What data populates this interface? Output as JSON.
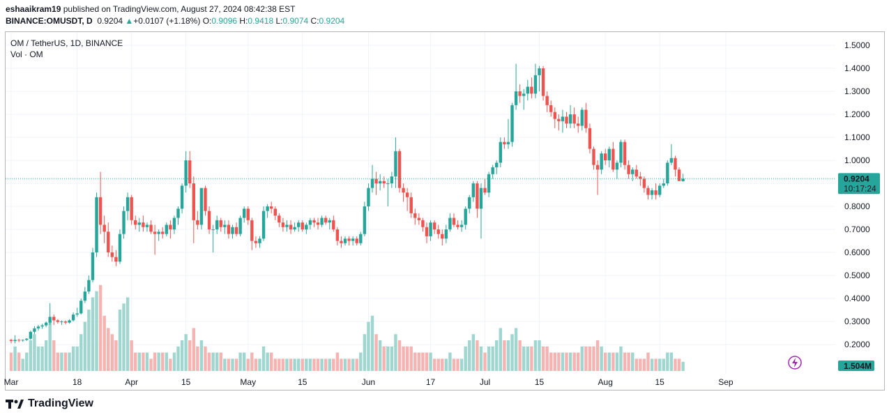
{
  "header": {
    "publisher": "eshaaikram19",
    "published_text": "published on TradingView.com, August 27, 2024 08:42:38 EST",
    "symbol": "BINANCE:OMUSDT, D",
    "price": "0.9204",
    "change_arrow": "▲",
    "change": "+0.0107 (+1.18%)",
    "o_label": "O:",
    "o_value": "0.9096",
    "h_label": "H:",
    "h_value": "0.9418",
    "l_label": "L:",
    "l_value": "0.9074",
    "c_label": "C:",
    "c_value": "0.9204"
  },
  "legend": {
    "title": "OM / TetherUS, 1D, BINANCE",
    "volume": "Vol · OM"
  },
  "footer": {
    "brand": "TradingView"
  },
  "colors": {
    "up": "#26a69a",
    "down": "#ef5350",
    "up_vol": "#9fd6cf",
    "down_vol": "#f5b3b1",
    "grid": "#f0f3fa"
  },
  "chart_data": {
    "type": "candlestick",
    "title": "OM / TetherUS, 1D, BINANCE",
    "ylim": [
      0.1,
      1.55
    ],
    "y_ticks": [
      "1.5000",
      "1.4000",
      "1.3000",
      "1.2000",
      "1.1000",
      "1.0000",
      "0.9000",
      "0.8000",
      "0.7000",
      "0.6000",
      "0.5000",
      "0.4000",
      "0.3000",
      "0.2000"
    ],
    "x_ticks": [
      {
        "label": "Mar",
        "day": 0
      },
      {
        "label": "18",
        "day": 17
      },
      {
        "label": "Apr",
        "day": 31
      },
      {
        "label": "15",
        "day": 45
      },
      {
        "label": "May",
        "day": 61
      },
      {
        "label": "15",
        "day": 75
      },
      {
        "label": "Jun",
        "day": 92
      },
      {
        "label": "17",
        "day": 108
      },
      {
        "label": "Jul",
        "day": 122
      },
      {
        "label": "15",
        "day": 136
      },
      {
        "label": "Aug",
        "day": 153
      },
      {
        "label": "15",
        "day": 167
      },
      {
        "label": "Sep",
        "day": 184
      }
    ],
    "last_price": "0.9204",
    "countdown": "10:17:24",
    "volume_label": "1.504M",
    "candles": [
      [
        0.22,
        0.225,
        0.205,
        0.215,
        3
      ],
      [
        0.215,
        0.24,
        0.205,
        0.22,
        4
      ],
      [
        0.22,
        0.225,
        0.21,
        0.218,
        3
      ],
      [
        0.218,
        0.222,
        0.212,
        0.22,
        2
      ],
      [
        0.22,
        0.228,
        0.215,
        0.225,
        3
      ],
      [
        0.225,
        0.26,
        0.22,
        0.255,
        5
      ],
      [
        0.255,
        0.28,
        0.245,
        0.27,
        6
      ],
      [
        0.27,
        0.285,
        0.26,
        0.278,
        4
      ],
      [
        0.278,
        0.29,
        0.268,
        0.283,
        4
      ],
      [
        0.283,
        0.3,
        0.275,
        0.295,
        5
      ],
      [
        0.295,
        0.38,
        0.285,
        0.32,
        8
      ],
      [
        0.32,
        0.33,
        0.285,
        0.305,
        5
      ],
      [
        0.305,
        0.31,
        0.29,
        0.298,
        3
      ],
      [
        0.298,
        0.305,
        0.285,
        0.3,
        3
      ],
      [
        0.3,
        0.305,
        0.288,
        0.295,
        3
      ],
      [
        0.295,
        0.31,
        0.29,
        0.305,
        3
      ],
      [
        0.305,
        0.34,
        0.3,
        0.33,
        4
      ],
      [
        0.33,
        0.36,
        0.32,
        0.335,
        4
      ],
      [
        0.335,
        0.4,
        0.33,
        0.39,
        6
      ],
      [
        0.39,
        0.45,
        0.38,
        0.43,
        8
      ],
      [
        0.43,
        0.5,
        0.42,
        0.48,
        10
      ],
      [
        0.48,
        0.62,
        0.47,
        0.6,
        12
      ],
      [
        0.6,
        0.86,
        0.58,
        0.84,
        13
      ],
      [
        0.84,
        0.95,
        0.68,
        0.72,
        14
      ],
      [
        0.72,
        0.76,
        0.64,
        0.69,
        9
      ],
      [
        0.69,
        0.73,
        0.58,
        0.6,
        7
      ],
      [
        0.6,
        0.63,
        0.56,
        0.58,
        6
      ],
      [
        0.58,
        0.61,
        0.54,
        0.56,
        5
      ],
      [
        0.56,
        0.7,
        0.55,
        0.68,
        10
      ],
      [
        0.68,
        0.8,
        0.66,
        0.78,
        11
      ],
      [
        0.78,
        0.86,
        0.74,
        0.84,
        12
      ],
      [
        0.84,
        0.85,
        0.72,
        0.74,
        5
      ],
      [
        0.74,
        0.76,
        0.7,
        0.72,
        3
      ],
      [
        0.72,
        0.75,
        0.69,
        0.73,
        3
      ],
      [
        0.73,
        0.76,
        0.69,
        0.71,
        3
      ],
      [
        0.71,
        0.73,
        0.69,
        0.72,
        3
      ],
      [
        0.72,
        0.74,
        0.68,
        0.69,
        2
      ],
      [
        0.69,
        0.72,
        0.59,
        0.68,
        3
      ],
      [
        0.68,
        0.7,
        0.65,
        0.69,
        3
      ],
      [
        0.69,
        0.71,
        0.66,
        0.68,
        3
      ],
      [
        0.68,
        0.73,
        0.67,
        0.72,
        3
      ],
      [
        0.72,
        0.74,
        0.66,
        0.7,
        2
      ],
      [
        0.7,
        0.76,
        0.68,
        0.75,
        3
      ],
      [
        0.75,
        0.8,
        0.72,
        0.79,
        4
      ],
      [
        0.79,
        0.9,
        0.77,
        0.89,
        5
      ],
      [
        0.89,
        1.04,
        0.86,
        1.0,
        6
      ],
      [
        1.0,
        1.04,
        0.88,
        0.9,
        5
      ],
      [
        0.9,
        0.93,
        0.64,
        0.74,
        7
      ],
      [
        0.74,
        0.78,
        0.7,
        0.72,
        4
      ],
      [
        0.72,
        0.88,
        0.7,
        0.88,
        5
      ],
      [
        0.88,
        0.89,
        0.76,
        0.78,
        4
      ],
      [
        0.78,
        0.8,
        0.68,
        0.7,
        3
      ],
      [
        0.7,
        0.72,
        0.6,
        0.7,
        3
      ],
      [
        0.7,
        0.76,
        0.68,
        0.74,
        3
      ],
      [
        0.74,
        0.75,
        0.69,
        0.71,
        3
      ],
      [
        0.71,
        0.74,
        0.68,
        0.72,
        2
      ],
      [
        0.72,
        0.74,
        0.66,
        0.68,
        2
      ],
      [
        0.68,
        0.72,
        0.66,
        0.71,
        2
      ],
      [
        0.71,
        0.73,
        0.67,
        0.68,
        2
      ],
      [
        0.68,
        0.76,
        0.67,
        0.75,
        3
      ],
      [
        0.75,
        0.8,
        0.73,
        0.79,
        3
      ],
      [
        0.79,
        0.8,
        0.72,
        0.74,
        2
      ],
      [
        0.74,
        0.75,
        0.61,
        0.65,
        3
      ],
      [
        0.65,
        0.67,
        0.62,
        0.64,
        2
      ],
      [
        0.64,
        0.67,
        0.62,
        0.66,
        2
      ],
      [
        0.66,
        0.8,
        0.65,
        0.78,
        4
      ],
      [
        0.78,
        0.81,
        0.75,
        0.8,
        3
      ],
      [
        0.8,
        0.82,
        0.77,
        0.79,
        3
      ],
      [
        0.79,
        0.8,
        0.74,
        0.76,
        2
      ],
      [
        0.76,
        0.77,
        0.71,
        0.73,
        2
      ],
      [
        0.73,
        0.75,
        0.69,
        0.71,
        2
      ],
      [
        0.71,
        0.74,
        0.69,
        0.72,
        2
      ],
      [
        0.72,
        0.74,
        0.68,
        0.7,
        2
      ],
      [
        0.7,
        0.73,
        0.69,
        0.71,
        2
      ],
      [
        0.71,
        0.74,
        0.69,
        0.73,
        2
      ],
      [
        0.73,
        0.74,
        0.69,
        0.7,
        2
      ],
      [
        0.7,
        0.73,
        0.68,
        0.72,
        2
      ],
      [
        0.72,
        0.75,
        0.7,
        0.74,
        2
      ],
      [
        0.74,
        0.75,
        0.71,
        0.73,
        2
      ],
      [
        0.73,
        0.75,
        0.7,
        0.72,
        2
      ],
      [
        0.72,
        0.76,
        0.71,
        0.75,
        2
      ],
      [
        0.75,
        0.76,
        0.72,
        0.73,
        2
      ],
      [
        0.73,
        0.75,
        0.7,
        0.74,
        2
      ],
      [
        0.74,
        0.76,
        0.69,
        0.7,
        2
      ],
      [
        0.7,
        0.71,
        0.63,
        0.65,
        3
      ],
      [
        0.65,
        0.67,
        0.62,
        0.64,
        2
      ],
      [
        0.64,
        0.67,
        0.63,
        0.66,
        2
      ],
      [
        0.66,
        0.67,
        0.63,
        0.65,
        2
      ],
      [
        0.65,
        0.67,
        0.63,
        0.66,
        2
      ],
      [
        0.66,
        0.67,
        0.63,
        0.64,
        2
      ],
      [
        0.64,
        0.69,
        0.63,
        0.68,
        3
      ],
      [
        0.68,
        0.82,
        0.67,
        0.8,
        6
      ],
      [
        0.8,
        0.9,
        0.78,
        0.88,
        8
      ],
      [
        0.88,
        0.98,
        0.86,
        0.92,
        9
      ],
      [
        0.92,
        0.95,
        0.85,
        0.9,
        6
      ],
      [
        0.9,
        0.94,
        0.87,
        0.91,
        5
      ],
      [
        0.91,
        0.93,
        0.88,
        0.9,
        4
      ],
      [
        0.9,
        0.92,
        0.8,
        0.9,
        4
      ],
      [
        0.9,
        0.95,
        0.88,
        0.93,
        4
      ],
      [
        0.93,
        1.1,
        0.88,
        1.04,
        6
      ],
      [
        1.04,
        1.05,
        0.86,
        0.88,
        5
      ],
      [
        0.88,
        0.9,
        0.82,
        0.86,
        4
      ],
      [
        0.86,
        0.88,
        0.78,
        0.84,
        4
      ],
      [
        0.84,
        0.86,
        0.75,
        0.77,
        4
      ],
      [
        0.77,
        0.79,
        0.72,
        0.75,
        3
      ],
      [
        0.75,
        0.77,
        0.72,
        0.74,
        3
      ],
      [
        0.74,
        0.75,
        0.69,
        0.71,
        3
      ],
      [
        0.71,
        0.73,
        0.64,
        0.67,
        3
      ],
      [
        0.67,
        0.74,
        0.65,
        0.73,
        3
      ],
      [
        0.73,
        0.74,
        0.68,
        0.7,
        2
      ],
      [
        0.7,
        0.72,
        0.66,
        0.68,
        2
      ],
      [
        0.68,
        0.7,
        0.63,
        0.66,
        2
      ],
      [
        0.66,
        0.72,
        0.64,
        0.7,
        2
      ],
      [
        0.7,
        0.77,
        0.69,
        0.75,
        3
      ],
      [
        0.75,
        0.77,
        0.71,
        0.72,
        2
      ],
      [
        0.72,
        0.74,
        0.7,
        0.71,
        2
      ],
      [
        0.71,
        0.74,
        0.69,
        0.72,
        2
      ],
      [
        0.72,
        0.8,
        0.7,
        0.79,
        4
      ],
      [
        0.79,
        0.85,
        0.77,
        0.84,
        5
      ],
      [
        0.84,
        0.91,
        0.82,
        0.9,
        6
      ],
      [
        0.9,
        0.91,
        0.75,
        0.79,
        5
      ],
      [
        0.79,
        0.9,
        0.66,
        0.88,
        4
      ],
      [
        0.88,
        0.92,
        0.85,
        0.86,
        3
      ],
      [
        0.86,
        0.95,
        0.84,
        0.94,
        4
      ],
      [
        0.94,
        0.98,
        0.92,
        0.97,
        4
      ],
      [
        0.97,
        1.0,
        0.94,
        0.99,
        5
      ],
      [
        0.99,
        1.1,
        0.97,
        1.08,
        7
      ],
      [
        1.08,
        1.1,
        1.05,
        1.07,
        5
      ],
      [
        1.07,
        1.18,
        1.05,
        1.08,
        5
      ],
      [
        1.08,
        1.25,
        1.06,
        1.24,
        6
      ],
      [
        1.24,
        1.42,
        1.22,
        1.3,
        7
      ],
      [
        1.3,
        1.33,
        1.25,
        1.28,
        5
      ],
      [
        1.28,
        1.31,
        1.22,
        1.29,
        4
      ],
      [
        1.29,
        1.35,
        1.26,
        1.32,
        4
      ],
      [
        1.32,
        1.36,
        1.27,
        1.29,
        4
      ],
      [
        1.29,
        1.42,
        1.27,
        1.37,
        5
      ],
      [
        1.37,
        1.41,
        1.3,
        1.4,
        5
      ],
      [
        1.4,
        1.41,
        1.26,
        1.28,
        4
      ],
      [
        1.28,
        1.3,
        1.21,
        1.24,
        4
      ],
      [
        1.24,
        1.26,
        1.19,
        1.21,
        3
      ],
      [
        1.21,
        1.23,
        1.14,
        1.18,
        3
      ],
      [
        1.18,
        1.2,
        1.13,
        1.17,
        3
      ],
      [
        1.17,
        1.22,
        1.12,
        1.19,
        3
      ],
      [
        1.19,
        1.21,
        1.14,
        1.16,
        3
      ],
      [
        1.16,
        1.24,
        1.14,
        1.2,
        3
      ],
      [
        1.2,
        1.23,
        1.14,
        1.16,
        3
      ],
      [
        1.16,
        1.19,
        1.12,
        1.15,
        3
      ],
      [
        1.15,
        1.23,
        1.13,
        1.22,
        4
      ],
      [
        1.22,
        1.25,
        1.12,
        1.14,
        4
      ],
      [
        1.14,
        1.16,
        1.03,
        1.05,
        4
      ],
      [
        1.05,
        1.06,
        0.96,
        0.98,
        4
      ],
      [
        0.98,
        1.0,
        0.85,
        0.96,
        5
      ],
      [
        0.96,
        1.04,
        0.94,
        1.03,
        4
      ],
      [
        1.03,
        1.05,
        0.98,
        1.0,
        3
      ],
      [
        1.0,
        1.06,
        0.97,
        1.05,
        3
      ],
      [
        1.05,
        1.08,
        0.95,
        0.96,
        3
      ],
      [
        0.96,
        1.0,
        0.92,
        0.99,
        3
      ],
      [
        0.99,
        1.09,
        0.97,
        1.08,
        4
      ],
      [
        1.08,
        1.09,
        0.96,
        0.98,
        3
      ],
      [
        0.98,
        1.0,
        0.92,
        0.94,
        3
      ],
      [
        0.94,
        0.97,
        0.91,
        0.96,
        3
      ],
      [
        0.96,
        0.98,
        0.92,
        0.93,
        2
      ],
      [
        0.93,
        0.95,
        0.89,
        0.92,
        2
      ],
      [
        0.92,
        0.93,
        0.86,
        0.88,
        2
      ],
      [
        0.88,
        0.89,
        0.83,
        0.85,
        3
      ],
      [
        0.85,
        0.88,
        0.83,
        0.87,
        2
      ],
      [
        0.87,
        0.9,
        0.83,
        0.85,
        2
      ],
      [
        0.85,
        0.9,
        0.84,
        0.89,
        2
      ],
      [
        0.89,
        0.92,
        0.88,
        0.9,
        2
      ],
      [
        0.9,
        1.0,
        0.89,
        0.99,
        3
      ],
      [
        0.99,
        1.07,
        0.98,
        1.01,
        3
      ],
      [
        1.01,
        1.02,
        0.93,
        0.96,
        2
      ],
      [
        0.96,
        0.97,
        0.91,
        0.91,
        2
      ],
      [
        0.9096,
        0.9418,
        0.9074,
        0.9204,
        1.5
      ]
    ]
  }
}
